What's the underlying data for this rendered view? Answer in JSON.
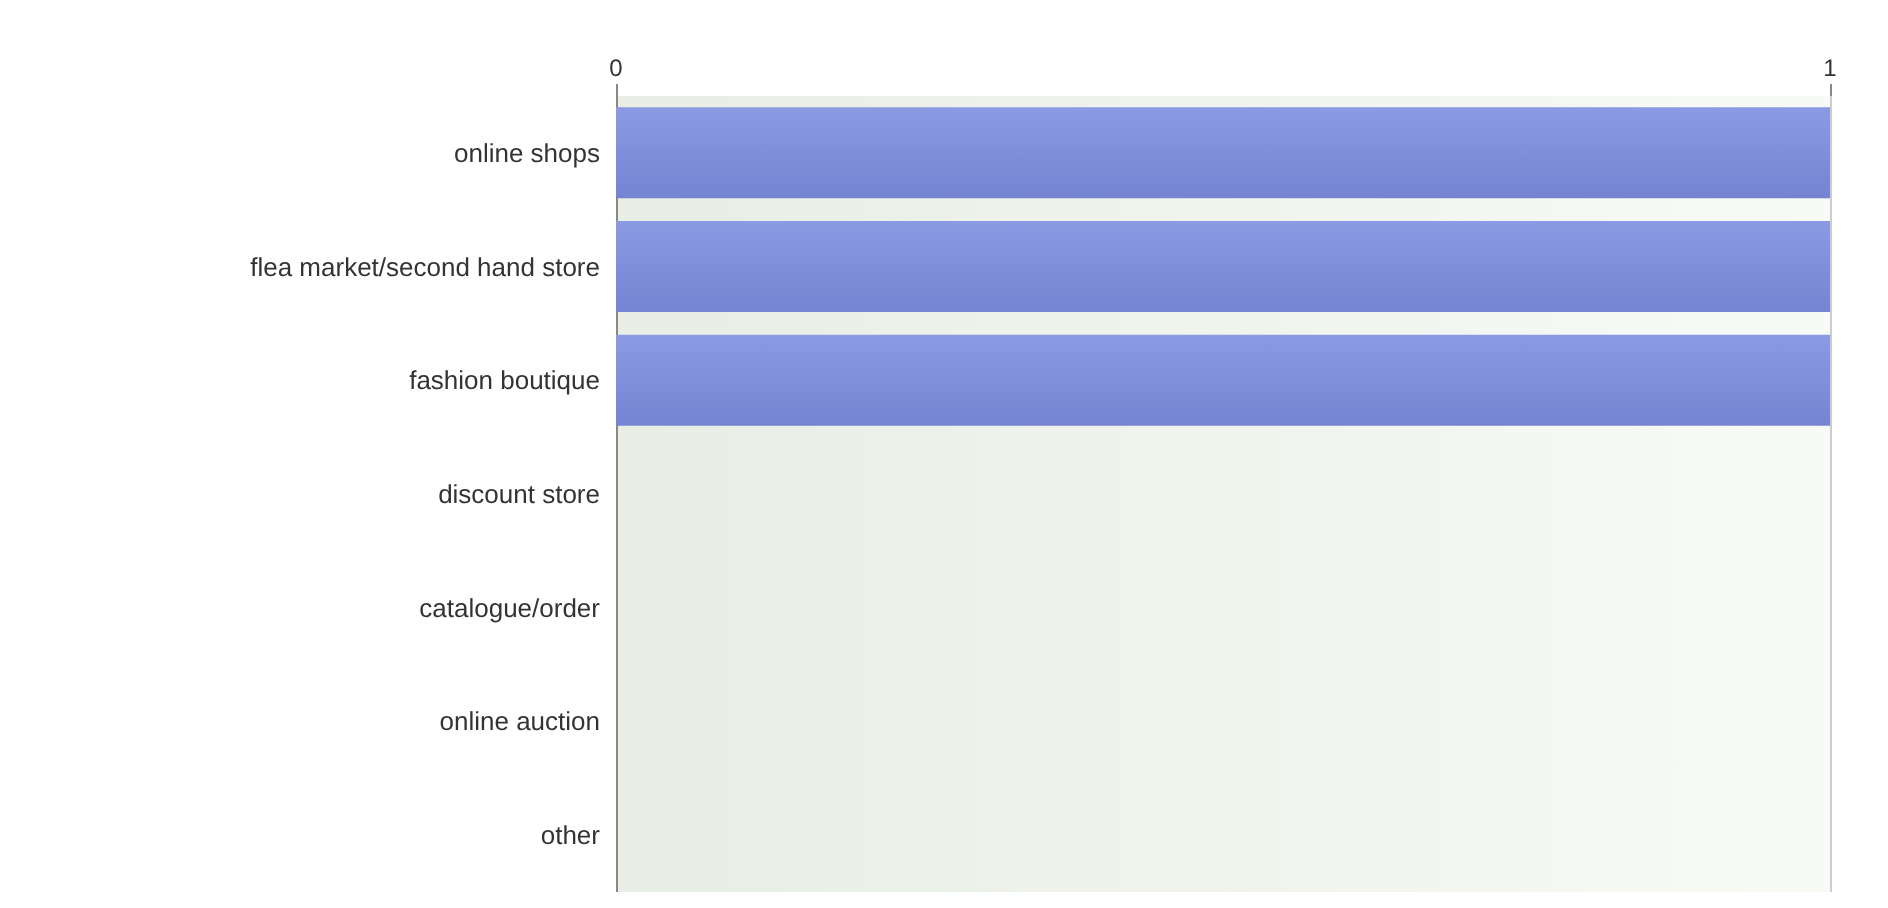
{
  "chart_data": {
    "type": "bar",
    "orientation": "horizontal",
    "categories": [
      "online shops",
      "flea market/second hand store",
      "fashion boutique",
      "discount store",
      "catalogue/order",
      "online auction",
      "other"
    ],
    "values": [
      1,
      1,
      1,
      0,
      0,
      0,
      0
    ],
    "color": "#7484d2",
    "xlim": [
      0,
      1
    ],
    "xticks": [
      0,
      1
    ]
  }
}
